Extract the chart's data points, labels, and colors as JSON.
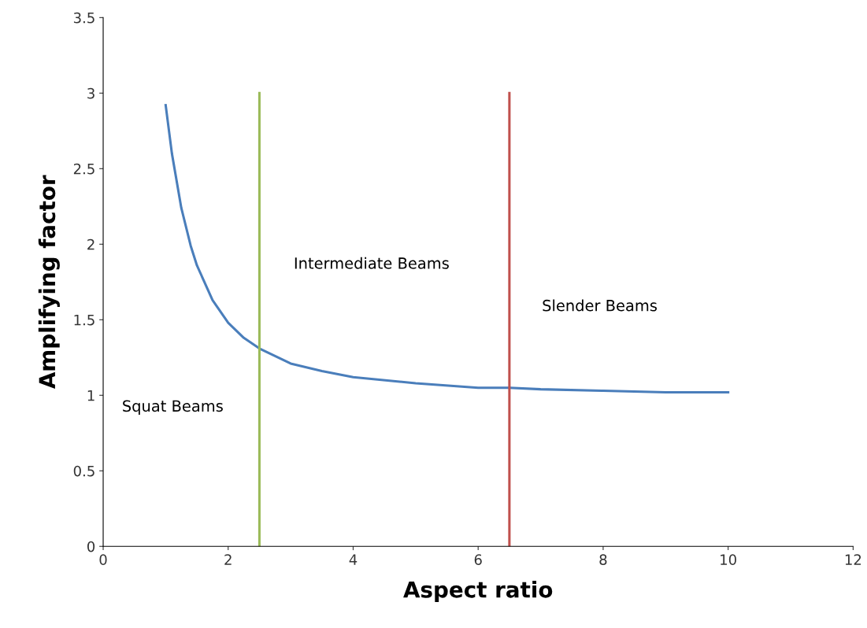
{
  "chart_data": {
    "type": "line",
    "xlabel": "Aspect ratio",
    "ylabel": "Amplifying factor",
    "xlim": [
      0,
      12
    ],
    "xticks": [
      0,
      2,
      4,
      6,
      8,
      10,
      12
    ],
    "ylim": [
      0,
      3.5
    ],
    "yticks": [
      0,
      0.5,
      1,
      1.5,
      2,
      2.5,
      3,
      3.5
    ],
    "grid": false,
    "legend": false,
    "marker": "none",
    "line_style": "solid",
    "series": [
      {
        "color": "#4a7ebb",
        "x": [
          1,
          1.1,
          1.25,
          1.4,
          1.5,
          1.75,
          2,
          2.25,
          2.5,
          3,
          3.5,
          4,
          5,
          6,
          6.5,
          7,
          8,
          9,
          10
        ],
        "values": [
          2.92,
          2.6,
          2.24,
          1.99,
          1.86,
          1.63,
          1.48,
          1.38,
          1.31,
          1.21,
          1.16,
          1.12,
          1.08,
          1.05,
          1.05,
          1.04,
          1.03,
          1.02,
          1.02
        ]
      },
      {
        "color": "#9bbb59",
        "x": [
          2.5,
          2.5
        ],
        "values": [
          0,
          3
        ]
      },
      {
        "color": "#c0504d",
        "x": [
          6.5,
          6.5
        ],
        "values": [
          0,
          3
        ]
      }
    ],
    "annotations": [
      "Squat Beams",
      "Intermediate Beams",
      "Slender Beams"
    ]
  }
}
